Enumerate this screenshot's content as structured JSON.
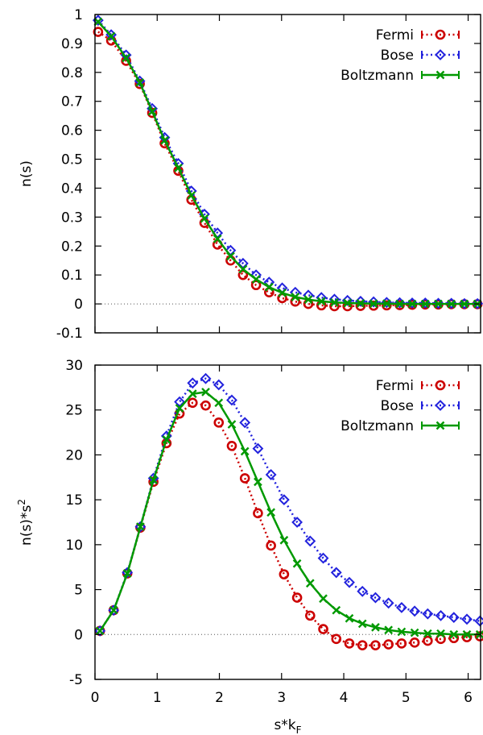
{
  "chart_data": [
    {
      "type": "line",
      "title": "",
      "xlabel": "",
      "ylabel": "n(s)",
      "xlim": [
        0,
        6.2
      ],
      "ylim": [
        -0.1,
        1.0
      ],
      "x_ticks": [
        0,
        1,
        2,
        3,
        4,
        5,
        6
      ],
      "y_ticks": [
        -0.1,
        0,
        0.1,
        0.2,
        0.3,
        0.4,
        0.5,
        0.6,
        0.7,
        0.8,
        0.9,
        1
      ],
      "x_tick_labels": [
        "",
        "",
        "",
        "",
        "",
        "",
        ""
      ],
      "y_tick_labels": [
        "-0.1",
        "0",
        "0.1",
        "0.2",
        "0.3",
        "0.4",
        "0.5",
        "0.6",
        "0.7",
        "0.8",
        "0.9",
        "1"
      ],
      "zero_line": true,
      "legend_position": "top-right",
      "x": [
        0.05,
        0.26,
        0.5,
        0.72,
        0.92,
        1.12,
        1.34,
        1.55,
        1.76,
        1.97,
        2.18,
        2.38,
        2.59,
        2.8,
        3.01,
        3.22,
        3.43,
        3.64,
        3.85,
        4.06,
        4.27,
        4.48,
        4.69,
        4.9,
        5.1,
        5.31,
        5.52,
        5.73,
        5.94,
        6.15
      ],
      "series": [
        {
          "name": "Fermi",
          "color": "#cc0000",
          "marker": "circle",
          "dash": "dotted",
          "values": [
            0.94,
            0.91,
            0.84,
            0.76,
            0.66,
            0.555,
            0.46,
            0.36,
            0.28,
            0.205,
            0.15,
            0.1,
            0.065,
            0.04,
            0.02,
            0.008,
            0.0,
            -0.005,
            -0.008,
            -0.008,
            -0.007,
            -0.006,
            -0.005,
            -0.004,
            -0.003,
            -0.002,
            -0.002,
            -0.001,
            -0.001,
            -0.001
          ]
        },
        {
          "name": "Bose",
          "color": "#2222dd",
          "marker": "diamond",
          "dash": "dotted",
          "values": [
            0.98,
            0.93,
            0.86,
            0.77,
            0.675,
            0.575,
            0.485,
            0.39,
            0.31,
            0.245,
            0.185,
            0.14,
            0.1,
            0.075,
            0.055,
            0.04,
            0.03,
            0.022,
            0.016,
            0.012,
            0.009,
            0.007,
            0.005,
            0.004,
            0.003,
            0.003,
            0.002,
            0.002,
            0.001,
            0.001
          ]
        },
        {
          "name": "Boltzmann",
          "color": "#009900",
          "marker": "cross",
          "dash": "solid",
          "values": [
            0.975,
            0.925,
            0.85,
            0.765,
            0.665,
            0.565,
            0.47,
            0.375,
            0.295,
            0.225,
            0.165,
            0.12,
            0.085,
            0.058,
            0.038,
            0.024,
            0.015,
            0.009,
            0.005,
            0.003,
            0.002,
            0.001,
            0.001,
            0.0,
            0.0,
            0.0,
            0.0,
            0.0,
            0.0,
            0.0
          ]
        }
      ]
    },
    {
      "type": "line",
      "title": "",
      "xlabel": "s*k_F",
      "ylabel": "n(s)*s^2",
      "xlim": [
        0,
        6.2
      ],
      "ylim": [
        -5,
        30
      ],
      "x_ticks": [
        0,
        1,
        2,
        3,
        4,
        5,
        6
      ],
      "y_ticks": [
        -5,
        0,
        5,
        10,
        15,
        20,
        25,
        30
      ],
      "x_tick_labels": [
        "0",
        "1",
        "2",
        "3",
        "4",
        "5",
        "6"
      ],
      "y_tick_labels": [
        "-5",
        "0",
        "5",
        "10",
        "15",
        "20",
        "25",
        "30"
      ],
      "zero_line": true,
      "legend_position": "top-right",
      "x": [
        0.08,
        0.3,
        0.52,
        0.73,
        0.94,
        1.15,
        1.36,
        1.57,
        1.78,
        1.99,
        2.2,
        2.41,
        2.62,
        2.83,
        3.04,
        3.25,
        3.46,
        3.67,
        3.88,
        4.09,
        4.3,
        4.51,
        4.72,
        4.93,
        5.14,
        5.35,
        5.56,
        5.77,
        5.98,
        6.19
      ],
      "series": [
        {
          "name": "Fermi",
          "color": "#cc0000",
          "marker": "circle",
          "dash": "dotted",
          "values": [
            0.4,
            2.7,
            6.8,
            11.9,
            17.0,
            21.3,
            24.6,
            25.8,
            25.5,
            23.6,
            21.0,
            17.4,
            13.5,
            9.9,
            6.7,
            4.1,
            2.1,
            0.6,
            -0.5,
            -1.0,
            -1.2,
            -1.2,
            -1.1,
            -1.0,
            -0.9,
            -0.7,
            -0.5,
            -0.4,
            -0.3,
            -0.2
          ]
        },
        {
          "name": "Bose",
          "color": "#2222dd",
          "marker": "diamond",
          "dash": "dotted",
          "values": [
            0.4,
            2.7,
            6.9,
            12.0,
            17.4,
            22.1,
            25.9,
            28.0,
            28.5,
            27.8,
            26.1,
            23.6,
            20.7,
            17.8,
            15.0,
            12.5,
            10.4,
            8.5,
            6.9,
            5.8,
            4.8,
            4.1,
            3.5,
            3.0,
            2.6,
            2.3,
            2.1,
            1.9,
            1.7,
            1.5
          ]
        },
        {
          "name": "Boltzmann",
          "color": "#009900",
          "marker": "cross",
          "dash": "solid",
          "values": [
            0.4,
            2.7,
            6.8,
            12.0,
            17.2,
            21.7,
            25.2,
            26.8,
            27.0,
            25.8,
            23.4,
            20.4,
            17.0,
            13.6,
            10.5,
            7.9,
            5.7,
            4.0,
            2.7,
            1.8,
            1.2,
            0.8,
            0.5,
            0.3,
            0.2,
            0.1,
            0.1,
            0.0,
            0.0,
            0.0
          ]
        }
      ]
    }
  ]
}
